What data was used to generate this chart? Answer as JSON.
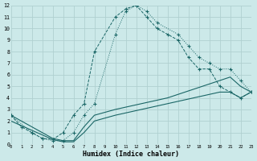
{
  "xlabel": "Humidex (Indice chaleur)",
  "bg_color": "#cce9e9",
  "grid_color": "#b0d0d0",
  "line_color": "#1a6666",
  "xlim": [
    0,
    23
  ],
  "ylim": [
    0,
    12
  ],
  "xticks": [
    0,
    1,
    2,
    3,
    4,
    5,
    6,
    7,
    8,
    9,
    10,
    11,
    12,
    13,
    14,
    15,
    16,
    17,
    18,
    19,
    20,
    21,
    22,
    23
  ],
  "yticks": [
    0,
    1,
    2,
    3,
    4,
    5,
    6,
    7,
    8,
    9,
    10,
    11,
    12
  ],
  "line1_x": [
    0,
    1,
    2,
    3,
    4,
    5,
    6,
    7,
    8,
    10,
    11,
    12,
    13,
    14,
    15,
    16,
    17,
    18,
    19,
    20,
    21,
    22,
    23
  ],
  "line1_y": [
    2.5,
    1.5,
    1.0,
    0.5,
    0.4,
    1.0,
    2.5,
    3.5,
    8.0,
    11.0,
    11.7,
    12.0,
    11.0,
    10.0,
    9.5,
    9.0,
    7.5,
    6.5,
    6.5,
    5.0,
    4.5,
    4.0,
    4.5
  ],
  "line1_style": "--",
  "line2_x": [
    0,
    2,
    3,
    4,
    5,
    6,
    7,
    8,
    10,
    11,
    12,
    13,
    14,
    16,
    17,
    18,
    19,
    20,
    21,
    22,
    23
  ],
  "line2_y": [
    2.5,
    1.0,
    0.5,
    0.3,
    0.3,
    1.0,
    2.5,
    3.5,
    9.5,
    11.5,
    12.0,
    11.5,
    10.5,
    9.5,
    8.5,
    7.5,
    7.0,
    6.5,
    6.5,
    5.5,
    4.5
  ],
  "line2_style": ":",
  "line3_x": [
    0,
    4,
    5,
    6,
    7,
    8,
    10,
    15,
    20,
    21,
    22,
    23
  ],
  "line3_y": [
    2.5,
    0.5,
    0.3,
    0.3,
    1.5,
    2.5,
    3.0,
    4.0,
    5.5,
    5.8,
    5.0,
    4.5
  ],
  "line3_style": "-",
  "line4_x": [
    0,
    4,
    5,
    6,
    7,
    8,
    10,
    15,
    20,
    21,
    22,
    23
  ],
  "line4_y": [
    2.0,
    0.4,
    0.2,
    0.2,
    1.0,
    2.0,
    2.5,
    3.5,
    4.5,
    4.5,
    4.0,
    4.5
  ],
  "line4_style": "-"
}
